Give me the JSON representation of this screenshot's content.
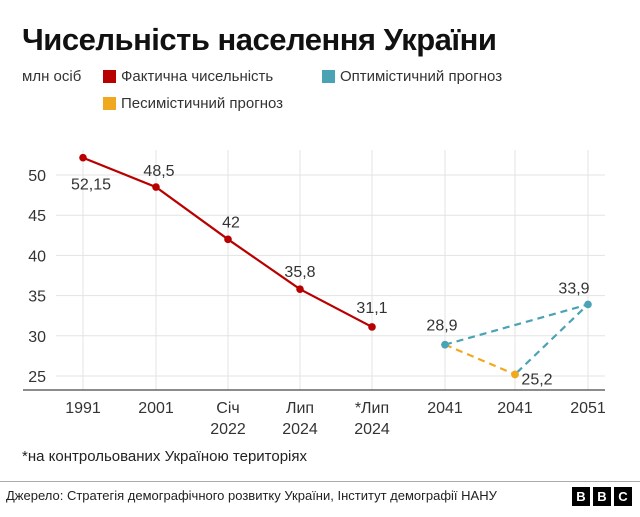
{
  "chart_data": {
    "type": "line",
    "title": "Чисельність населення України",
    "ylabel": "млн осіб",
    "ylim": [
      25,
      50
    ],
    "yticks": [
      25,
      30,
      35,
      40,
      45,
      50
    ],
    "grid": true,
    "legend_placement": "top",
    "categories": [
      "1991",
      "2001",
      "Січ 2022",
      "Лип 2024",
      "*Лип 2024",
      "2041",
      "2041",
      "2051"
    ],
    "category_lines": [
      [
        "1991"
      ],
      [
        "2001"
      ],
      [
        "Січ",
        "2022"
      ],
      [
        "Лип",
        "2024"
      ],
      [
        "*Лип",
        "2024"
      ],
      [
        "2041"
      ],
      [
        "2041"
      ],
      [
        "2051"
      ]
    ],
    "series": [
      {
        "name": "Фактична чисельність",
        "color": "#b80000",
        "dash": false,
        "points": [
          [
            0,
            52.15,
            "52,15"
          ],
          [
            1,
            48.5,
            "48,5"
          ],
          [
            2,
            42,
            "42"
          ],
          [
            3,
            35.8,
            "35,8"
          ],
          [
            4,
            31.1,
            "31,1"
          ]
        ]
      },
      {
        "name": "Оптимістичний прогноз",
        "color": "#4aa3b5",
        "dash": true,
        "points": [
          [
            5,
            28.9,
            "28,9"
          ],
          [
            7,
            33.9,
            "33,9"
          ],
          [
            6,
            25.2,
            "25,2"
          ]
        ]
      },
      {
        "name": "Песимістичний прогноз",
        "color": "#f0a91e",
        "dash": true,
        "points": [
          [
            5,
            28.9,
            ""
          ],
          [
            6,
            25.2,
            ""
          ]
        ]
      }
    ]
  },
  "footnote": "*на контрольованих Україною територіях",
  "source": "Джерело: Стратегія демографічного розвитку України, Інститут демографії НАНУ",
  "logo": [
    "B",
    "B",
    "C"
  ]
}
